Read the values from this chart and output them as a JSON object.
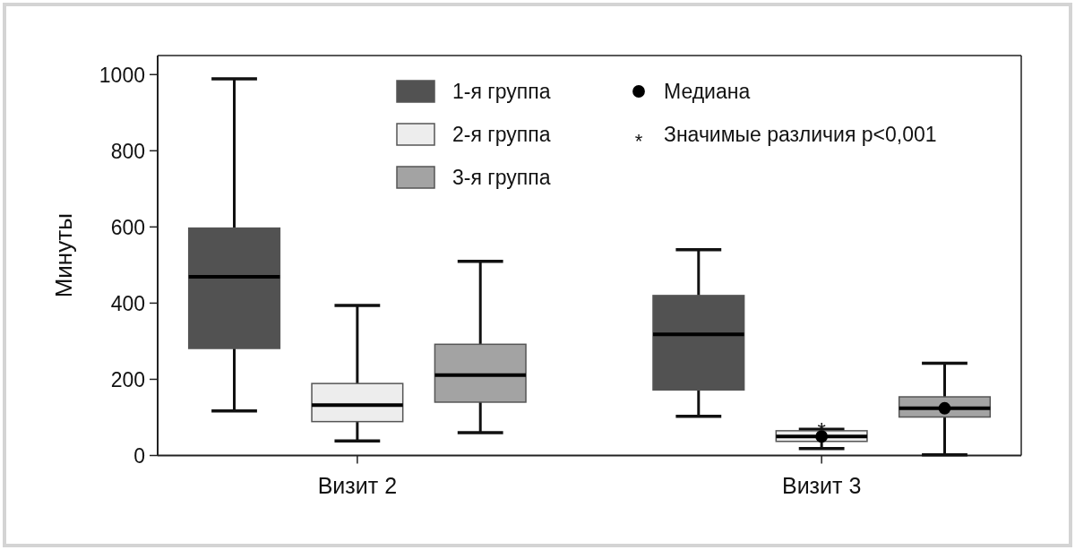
{
  "chart_data": {
    "type": "box",
    "ylabel": "Минуты",
    "categories": [
      "Визит 2",
      "Визит 3"
    ],
    "ylim": [
      0,
      1050
    ],
    "yticks": [
      0,
      200,
      400,
      600,
      800,
      1000
    ],
    "legend": "top",
    "marker": "circle",
    "series": [
      {
        "name": "1-я группа",
        "color": "#525252",
        "boxes": [
          {
            "low": 117,
            "q1": 281,
            "median": 469,
            "q3": 597,
            "high": 989
          },
          {
            "low": 103,
            "q1": 172,
            "median": 318,
            "q3": 420,
            "high": 540
          }
        ]
      },
      {
        "name": "2-я группа",
        "color": "#ededed",
        "boxes": [
          {
            "low": 38,
            "q1": 89,
            "median": 132,
            "q3": 189,
            "high": 394
          },
          {
            "low": 18,
            "q1": 37,
            "median": 50,
            "q3": 65,
            "high": 69
          }
        ]
      },
      {
        "name": "3-я группа",
        "color": "#a3a3a3",
        "boxes": [
          {
            "low": 60,
            "q1": 140,
            "median": 211,
            "q3": 292,
            "high": 510
          },
          {
            "low": 2,
            "q1": 101,
            "median": 124,
            "q3": 154,
            "high": 242
          }
        ]
      },
      {
        "name": "Медиана",
        "type": "scatter",
        "color": "#000000",
        "x": [
          "Визит 3",
          "Визит 3"
        ],
        "values": [
          50,
          124
        ]
      }
    ],
    "annotations": [
      {
        "text": "*",
        "x": "Визит 3",
        "y": 77
      },
      "Значимые различия p<0,001"
    ]
  }
}
